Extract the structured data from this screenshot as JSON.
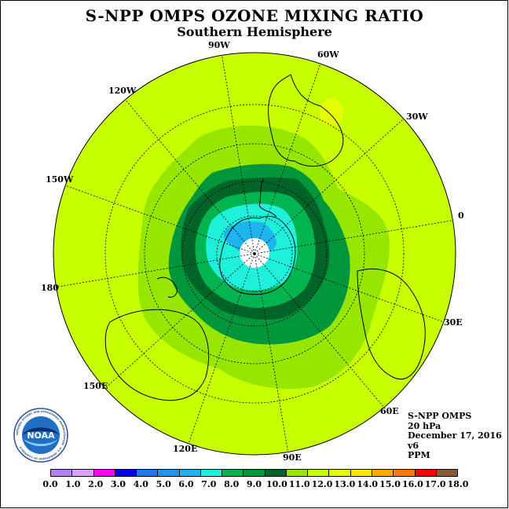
{
  "title": "S-NPP OMPS OZONE MIXING RATIO",
  "subtitle": "Southern Hemisphere",
  "info": {
    "instrument": "S-NPP OMPS",
    "level": "20 hPa",
    "date": "December 17, 2016",
    "version": "v6",
    "units": "PPM"
  },
  "logo": {
    "text": "NOAA",
    "ring_text": "NATIONAL OCEANIC AND ATMOSPHERIC ADMINISTRATION · U.S. DEPARTMENT OF COMMERCE"
  },
  "longitude_labels": [
    "90W",
    "60W",
    "30W",
    "0",
    "30E",
    "60E",
    "90E",
    "120E",
    "150E",
    "180",
    "150W",
    "120W"
  ],
  "colorbar": {
    "ticks": [
      "0.0",
      "1.0",
      "2.0",
      "3.0",
      "4.0",
      "5.0",
      "6.0",
      "7.0",
      "8.0",
      "9.0",
      "10.0",
      "11.0",
      "12.0",
      "13.0",
      "14.0",
      "15.0",
      "16.0",
      "17.0",
      "18.0"
    ],
    "colors": [
      "#b380ff",
      "#dca0ff",
      "#ff00ff",
      "#0000ee",
      "#1e78f0",
      "#1e96f0",
      "#1eb4f0",
      "#1ef0dc",
      "#00b450",
      "#00963c",
      "#006428",
      "#96e600",
      "#c8ff00",
      "#e6ff00",
      "#ffe600",
      "#ffaa00",
      "#ff7800",
      "#ff0000",
      "#8c5a32"
    ]
  },
  "colors": {
    "level_11": "#96e600",
    "level_12": "#c8ff00",
    "level_13": "#e6ff00",
    "level_10": "#006428",
    "level_9": "#00963c",
    "level_8": "#1ef0dc",
    "level_7": "#1eb4f0",
    "pole": "#ffffff"
  }
}
